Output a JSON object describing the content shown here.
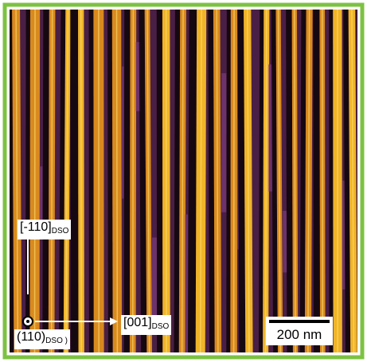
{
  "image": {
    "directions": [
      {
        "label": "[-110]",
        "sub": "DSO"
      },
      {
        "label": "[001]",
        "sub": "DSO"
      },
      {
        "label": "(110)",
        "sub": "DSO )"
      }
    ],
    "scale_bar": "200 nm"
  }
}
